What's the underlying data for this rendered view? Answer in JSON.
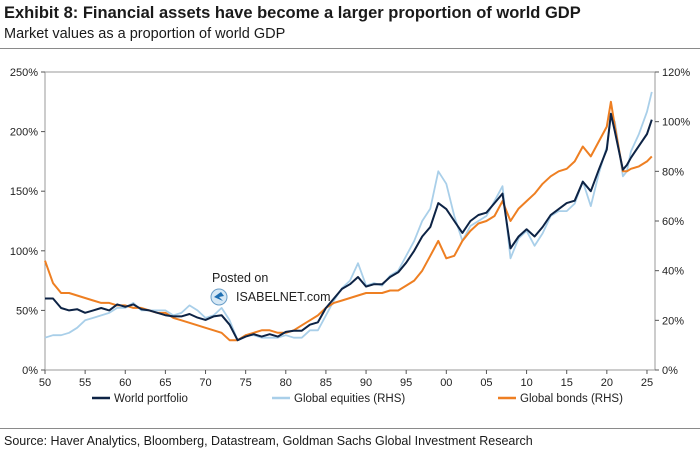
{
  "header": {
    "title": "Exhibit 8: Financial assets have become a larger proportion of world GDP",
    "subtitle": "Market values as a proportion of world GDP"
  },
  "footer": {
    "source": "Source: Haver Analytics, Bloomberg, Datastream, Goldman Sachs Global Investment Research"
  },
  "watermark": {
    "line1": "Posted on",
    "line2": "ISABELNET.com"
  },
  "colors": {
    "world": "#0d2345",
    "equities": "#a9cfe9",
    "bonds": "#ee7f22"
  },
  "chart_data": {
    "type": "line",
    "title": "Exhibit 8: Financial assets have become a larger proportion of world GDP",
    "subtitle": "Market values as a proportion of world GDP",
    "xlabel": "",
    "ylabel": "",
    "xlim": [
      1950,
      2026
    ],
    "ylim_left": [
      0,
      250
    ],
    "ylim_right": [
      0,
      120
    ],
    "x_ticks": [
      1950,
      1955,
      1960,
      1965,
      1970,
      1975,
      1980,
      1985,
      1990,
      1995,
      2000,
      2005,
      2010,
      2015,
      2020,
      2025
    ],
    "x_tick_labels": [
      "50",
      "55",
      "60",
      "65",
      "70",
      "75",
      "80",
      "85",
      "90",
      "95",
      "00",
      "05",
      "10",
      "15",
      "20",
      "25"
    ],
    "y_left_ticks": [
      0,
      50,
      100,
      150,
      200,
      250
    ],
    "y_left_tick_labels": [
      "0%",
      "50%",
      "100%",
      "150%",
      "200%",
      "250%"
    ],
    "y_right_ticks": [
      0,
      20,
      40,
      60,
      80,
      100,
      120
    ],
    "y_right_tick_labels": [
      "0%",
      "20%",
      "40%",
      "60%",
      "80%",
      "100%",
      "120%"
    ],
    "legend_position": "bottom",
    "series": [
      {
        "name": "World portfolio",
        "axis": "left",
        "color": "#0d2345",
        "points": [
          [
            1950,
            60
          ],
          [
            1951,
            60
          ],
          [
            1952,
            52
          ],
          [
            1953,
            50
          ],
          [
            1954,
            51
          ],
          [
            1955,
            48
          ],
          [
            1956,
            50
          ],
          [
            1957,
            52
          ],
          [
            1958,
            50
          ],
          [
            1959,
            55
          ],
          [
            1960,
            53
          ],
          [
            1961,
            55
          ],
          [
            1962,
            51
          ],
          [
            1963,
            50
          ],
          [
            1964,
            48
          ],
          [
            1965,
            46
          ],
          [
            1966,
            45
          ],
          [
            1967,
            45
          ],
          [
            1968,
            47
          ],
          [
            1969,
            44
          ],
          [
            1970,
            42
          ],
          [
            1971,
            45
          ],
          [
            1972,
            46
          ],
          [
            1973,
            38
          ],
          [
            1974,
            25
          ],
          [
            1975,
            28
          ],
          [
            1976,
            30
          ],
          [
            1977,
            28
          ],
          [
            1978,
            30
          ],
          [
            1979,
            28
          ],
          [
            1980,
            32
          ],
          [
            1981,
            33
          ],
          [
            1982,
            33
          ],
          [
            1983,
            38
          ],
          [
            1984,
            40
          ],
          [
            1985,
            52
          ],
          [
            1986,
            60
          ],
          [
            1987,
            68
          ],
          [
            1988,
            72
          ],
          [
            1989,
            78
          ],
          [
            1990,
            70
          ],
          [
            1991,
            72
          ],
          [
            1992,
            72
          ],
          [
            1993,
            78
          ],
          [
            1994,
            82
          ],
          [
            1995,
            90
          ],
          [
            1996,
            100
          ],
          [
            1997,
            112
          ],
          [
            1998,
            120
          ],
          [
            1999,
            140
          ],
          [
            2000,
            135
          ],
          [
            2001,
            125
          ],
          [
            2002,
            115
          ],
          [
            2003,
            125
          ],
          [
            2004,
            130
          ],
          [
            2005,
            132
          ],
          [
            2006,
            140
          ],
          [
            2007,
            148
          ],
          [
            2008,
            102
          ],
          [
            2009,
            112
          ],
          [
            2010,
            118
          ],
          [
            2011,
            112
          ],
          [
            2012,
            120
          ],
          [
            2013,
            130
          ],
          [
            2014,
            135
          ],
          [
            2015,
            140
          ],
          [
            2016,
            142
          ],
          [
            2017,
            158
          ],
          [
            2018,
            150
          ],
          [
            2019,
            168
          ],
          [
            2020,
            185
          ],
          [
            2020.5,
            215
          ],
          [
            2021,
            200
          ],
          [
            2022,
            168
          ],
          [
            2022.5,
            172
          ],
          [
            2023,
            178
          ],
          [
            2024,
            188
          ],
          [
            2025,
            198
          ],
          [
            2025.6,
            210
          ]
        ]
      },
      {
        "name": "Global equities (RHS)",
        "axis": "right",
        "color": "#a9cfe9",
        "points": [
          [
            1950,
            13
          ],
          [
            1951,
            14
          ],
          [
            1952,
            14
          ],
          [
            1953,
            15
          ],
          [
            1954,
            17
          ],
          [
            1955,
            20
          ],
          [
            1956,
            21
          ],
          [
            1957,
            22
          ],
          [
            1958,
            23
          ],
          [
            1959,
            25
          ],
          [
            1960,
            25
          ],
          [
            1961,
            27
          ],
          [
            1962,
            24
          ],
          [
            1963,
            24
          ],
          [
            1964,
            24
          ],
          [
            1965,
            24
          ],
          [
            1966,
            22
          ],
          [
            1967,
            23
          ],
          [
            1968,
            26
          ],
          [
            1969,
            24
          ],
          [
            1970,
            21
          ],
          [
            1971,
            22
          ],
          [
            1972,
            25
          ],
          [
            1973,
            20
          ],
          [
            1974,
            12
          ],
          [
            1975,
            14
          ],
          [
            1976,
            14
          ],
          [
            1977,
            13
          ],
          [
            1978,
            13
          ],
          [
            1979,
            13
          ],
          [
            1980,
            14
          ],
          [
            1981,
            13
          ],
          [
            1982,
            13
          ],
          [
            1983,
            16
          ],
          [
            1984,
            16
          ],
          [
            1985,
            22
          ],
          [
            1986,
            28
          ],
          [
            1987,
            33
          ],
          [
            1988,
            36
          ],
          [
            1989,
            43
          ],
          [
            1990,
            34
          ],
          [
            1991,
            35
          ],
          [
            1992,
            34
          ],
          [
            1993,
            38
          ],
          [
            1994,
            40
          ],
          [
            1995,
            46
          ],
          [
            1996,
            52
          ],
          [
            1997,
            60
          ],
          [
            1998,
            65
          ],
          [
            1999,
            80
          ],
          [
            2000,
            75
          ],
          [
            2001,
            62
          ],
          [
            2002,
            52
          ],
          [
            2003,
            58
          ],
          [
            2004,
            60
          ],
          [
            2005,
            62
          ],
          [
            2006,
            68
          ],
          [
            2007,
            74
          ],
          [
            2008,
            45
          ],
          [
            2009,
            53
          ],
          [
            2010,
            56
          ],
          [
            2011,
            50
          ],
          [
            2012,
            55
          ],
          [
            2013,
            62
          ],
          [
            2014,
            64
          ],
          [
            2015,
            64
          ],
          [
            2016,
            67
          ],
          [
            2017,
            76
          ],
          [
            2018,
            66
          ],
          [
            2019,
            79
          ],
          [
            2020,
            90
          ],
          [
            2020.5,
            102
          ],
          [
            2021,
            100
          ],
          [
            2022,
            78
          ],
          [
            2022.5,
            80
          ],
          [
            2023,
            88
          ],
          [
            2024,
            95
          ],
          [
            2025,
            104
          ],
          [
            2025.6,
            112
          ]
        ]
      },
      {
        "name": "Global bonds (RHS)",
        "axis": "right",
        "color": "#ee7f22",
        "points": [
          [
            1950,
            44
          ],
          [
            1951,
            35
          ],
          [
            1952,
            31
          ],
          [
            1953,
            31
          ],
          [
            1954,
            30
          ],
          [
            1955,
            29
          ],
          [
            1956,
            28
          ],
          [
            1957,
            27
          ],
          [
            1958,
            27
          ],
          [
            1959,
            26
          ],
          [
            1960,
            26
          ],
          [
            1961,
            25
          ],
          [
            1962,
            25
          ],
          [
            1963,
            24
          ],
          [
            1964,
            23
          ],
          [
            1965,
            23
          ],
          [
            1966,
            21
          ],
          [
            1967,
            20
          ],
          [
            1968,
            19
          ],
          [
            1969,
            18
          ],
          [
            1970,
            17
          ],
          [
            1971,
            16
          ],
          [
            1972,
            15
          ],
          [
            1973,
            12
          ],
          [
            1974,
            12
          ],
          [
            1975,
            14
          ],
          [
            1976,
            15
          ],
          [
            1977,
            16
          ],
          [
            1978,
            16
          ],
          [
            1979,
            15
          ],
          [
            1980,
            15
          ],
          [
            1981,
            16
          ],
          [
            1982,
            18
          ],
          [
            1983,
            20
          ],
          [
            1984,
            22
          ],
          [
            1985,
            25
          ],
          [
            1986,
            27
          ],
          [
            1987,
            28
          ],
          [
            1988,
            29
          ],
          [
            1989,
            30
          ],
          [
            1990,
            31
          ],
          [
            1991,
            31
          ],
          [
            1992,
            31
          ],
          [
            1993,
            32
          ],
          [
            1994,
            32
          ],
          [
            1995,
            34
          ],
          [
            1996,
            36
          ],
          [
            1997,
            40
          ],
          [
            1998,
            46
          ],
          [
            1999,
            52
          ],
          [
            2000,
            45
          ],
          [
            2001,
            46
          ],
          [
            2002,
            52
          ],
          [
            2003,
            56
          ],
          [
            2004,
            59
          ],
          [
            2005,
            60
          ],
          [
            2006,
            62
          ],
          [
            2007,
            68
          ],
          [
            2008,
            60
          ],
          [
            2009,
            65
          ],
          [
            2010,
            68
          ],
          [
            2011,
            71
          ],
          [
            2012,
            75
          ],
          [
            2013,
            78
          ],
          [
            2014,
            80
          ],
          [
            2015,
            81
          ],
          [
            2016,
            84
          ],
          [
            2017,
            90
          ],
          [
            2018,
            86
          ],
          [
            2019,
            92
          ],
          [
            2020,
            98
          ],
          [
            2020.5,
            108
          ],
          [
            2021,
            98
          ],
          [
            2022,
            80
          ],
          [
            2022.5,
            80
          ],
          [
            2023,
            81
          ],
          [
            2024,
            82
          ],
          [
            2025,
            84
          ],
          [
            2025.6,
            86
          ]
        ]
      }
    ]
  }
}
